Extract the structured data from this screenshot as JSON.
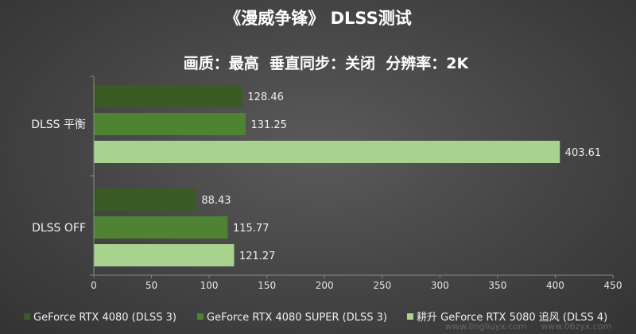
{
  "chart_data": {
    "type": "bar",
    "orientation": "horizontal",
    "title": "《漫威争锋》 DLSS测试",
    "subtitle": "画质：最高  垂直同步：关闭  分辨率：2K",
    "categories": [
      "DLSS 平衡",
      "DLSS  OFF"
    ],
    "series": [
      {
        "name": "GeForce RTX 4080 (DLSS 3)",
        "color": "#3a5a26",
        "values": [
          128.46,
          88.43
        ]
      },
      {
        "name": "GeForce RTX 4080 SUPER (DLSS 3)",
        "color": "#4f8233",
        "values": [
          131.25,
          115.77
        ]
      },
      {
        "name": "耕升 GeForce RTX 5080 追风 (DLSS  4)",
        "color": "#a8d38e",
        "values": [
          403.61,
          121.27
        ]
      }
    ],
    "xlim": [
      0,
      450
    ],
    "xticks": [
      0,
      50,
      100,
      150,
      200,
      250,
      300,
      350,
      400,
      450
    ],
    "grid": false,
    "legend": "bottom"
  },
  "watermark": {
    "text1": "www.lingliuyx.com",
    "text2": "www.06zyx.com"
  }
}
